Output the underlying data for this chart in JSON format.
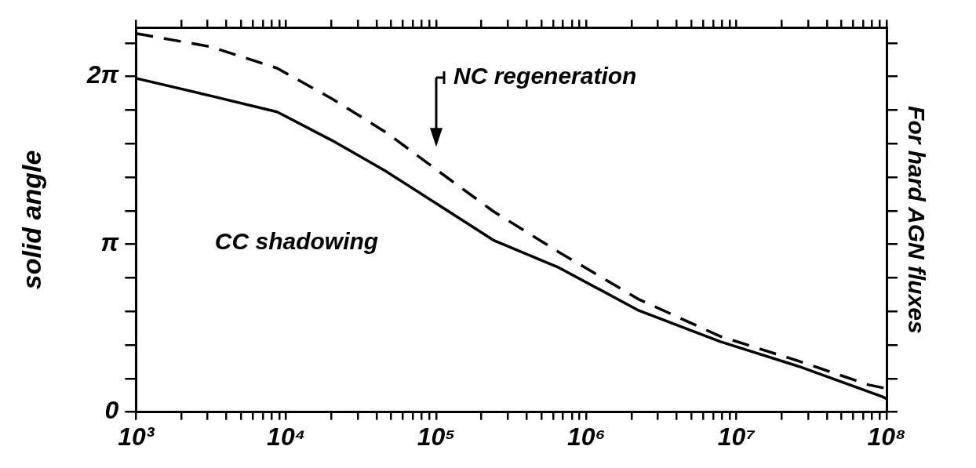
{
  "chart_data": {
    "type": "line",
    "ylabel": "solid angle",
    "y2label": "For hard AGN fluxes",
    "log": "x",
    "legend": false,
    "marker": "none",
    "xlim": [
      1000,
      100000000
    ],
    "ylim": [
      0,
      7.2
    ],
    "xticks": [
      {
        "value": 1000,
        "label": "10³"
      },
      {
        "value": 2000,
        "label": null
      },
      {
        "value": 3000,
        "label": null
      },
      {
        "value": 4000,
        "label": null
      },
      {
        "value": 5000,
        "label": null
      },
      {
        "value": 6000,
        "label": null
      },
      {
        "value": 7000,
        "label": null
      },
      {
        "value": 8000,
        "label": null
      },
      {
        "value": 9000,
        "label": null
      },
      {
        "value": 10000,
        "label": "10⁴"
      },
      {
        "value": 20000,
        "label": null
      },
      {
        "value": 30000,
        "label": null
      },
      {
        "value": 40000,
        "label": null
      },
      {
        "value": 50000,
        "label": null
      },
      {
        "value": 60000,
        "label": null
      },
      {
        "value": 70000,
        "label": null
      },
      {
        "value": 80000,
        "label": null
      },
      {
        "value": 90000,
        "label": null
      },
      {
        "value": 100000,
        "label": "10⁵"
      },
      {
        "value": 200000,
        "label": null
      },
      {
        "value": 300000,
        "label": null
      },
      {
        "value": 400000,
        "label": null
      },
      {
        "value": 500000,
        "label": null
      },
      {
        "value": 600000,
        "label": null
      },
      {
        "value": 700000,
        "label": null
      },
      {
        "value": 800000,
        "label": null
      },
      {
        "value": 900000,
        "label": null
      },
      {
        "value": 1000000,
        "label": "10⁶"
      },
      {
        "value": 2000000,
        "label": null
      },
      {
        "value": 3000000,
        "label": null
      },
      {
        "value": 4000000,
        "label": null
      },
      {
        "value": 5000000,
        "label": null
      },
      {
        "value": 6000000,
        "label": null
      },
      {
        "value": 7000000,
        "label": null
      },
      {
        "value": 8000000,
        "label": null
      },
      {
        "value": 9000000,
        "label": null
      },
      {
        "value": 10000000,
        "label": "10⁷"
      },
      {
        "value": 20000000,
        "label": null
      },
      {
        "value": 30000000,
        "label": null
      },
      {
        "value": 40000000,
        "label": null
      },
      {
        "value": 50000000,
        "label": null
      },
      {
        "value": 60000000,
        "label": null
      },
      {
        "value": 70000000,
        "label": null
      },
      {
        "value": 80000000,
        "label": null
      },
      {
        "value": 90000000,
        "label": null
      },
      {
        "value": 100000000,
        "label": "10⁸"
      }
    ],
    "yticks": [
      0,
      {
        "value": 0.6283,
        "label": null
      },
      {
        "value": 1.2566,
        "label": null
      },
      {
        "value": 1.885,
        "label": null
      },
      {
        "value": 2.5133,
        "label": null
      },
      {
        "value": 3.1416,
        "label": "π"
      },
      {
        "value": 3.7699,
        "label": null
      },
      {
        "value": 4.3982,
        "label": null
      },
      {
        "value": 5.0265,
        "label": null
      },
      {
        "value": 5.6549,
        "label": null
      },
      {
        "value": 6.2832,
        "label": "2π"
      },
      {
        "value": 6.9115,
        "label": null
      }
    ],
    "series": [
      {
        "color": "#000000",
        "line_style": "solid",
        "x": [
          1000,
          3162,
          8710,
          20420,
          46770,
          104700,
          239900,
          660700,
          2239000,
          7762000,
          26920000,
          93330000,
          100000000
        ],
        "values": [
          6.25,
          5.92,
          5.62,
          5.08,
          4.5,
          3.87,
          3.22,
          2.7,
          1.9,
          1.32,
          0.84,
          0.29,
          0.25
        ]
      },
      {
        "color": "#000000",
        "line_style": "dashed",
        "x": [
          1000,
          3162,
          8710,
          20420,
          46770,
          104700,
          239900,
          660700,
          2239000,
          7762000,
          26920000,
          75860000,
          100000000
        ],
        "values": [
          7.09,
          6.84,
          6.44,
          5.86,
          5.23,
          4.5,
          3.76,
          2.99,
          2.11,
          1.42,
          0.94,
          0.51,
          0.44
        ]
      }
    ],
    "annotations": [
      "NC regeneration",
      "CC shadowing"
    ]
  }
}
